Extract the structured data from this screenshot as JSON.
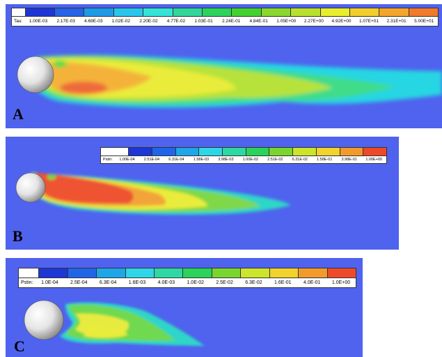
{
  "panels": [
    {
      "letter": "A",
      "legend_title": "Tau:",
      "legend_ticks": [
        "1.00E-03",
        "2.17E-03",
        "4.69E-03",
        "1.02E-02",
        "2.20E-02",
        "4.77E-02",
        "1.03E-01",
        "2.24E-01",
        "4.84E-01",
        "1.05E+00",
        "2.27E+00",
        "4.92E+00",
        "1.07E+01",
        "2.31E+01",
        "5.00E+01"
      ],
      "colors": [
        "#1d36d6",
        "#2563e8",
        "#1d9be8",
        "#28c6ec",
        "#35e4d8",
        "#2fd79a",
        "#2bd35a",
        "#42d230",
        "#8ad72e",
        "#b9e12c",
        "#e8ee2a",
        "#f3cd2c",
        "#f4a52c",
        "#f17a2c",
        "#ee4a2a"
      ]
    },
    {
      "letter": "B",
      "legend_title": "Pstin:",
      "legend_ticks": [
        "1.00E-04",
        "2.51E-04",
        "6.31E-04",
        "1.58E-03",
        "3.98E-03",
        "1.00E-02",
        "2.51E-02",
        "6.31E-02",
        "1.58E-01",
        "3.98E-01",
        "1.00E+00"
      ],
      "colors": [
        "#1d36d6",
        "#2066e8",
        "#1ea6e8",
        "#2ed6e6",
        "#2fd8a2",
        "#2bd35a",
        "#7ad52e",
        "#cde42c",
        "#f2d22c",
        "#f29a2c",
        "#ee4a2a"
      ]
    },
    {
      "letter": "C",
      "legend_title": "Pstin:",
      "legend_ticks": [
        "1.0E-04",
        "2.5E-04",
        "6.3E-04",
        "1.6E-03",
        "4.0E-03",
        "1.0E-02",
        "2.5E-02",
        "6.3E-02",
        "1.6E-01",
        "4.0E-01",
        "1.0E+00"
      ],
      "colors": [
        "#1d36d6",
        "#2066e8",
        "#1ea6e8",
        "#2ed6e6",
        "#2fd8a2",
        "#2bd35a",
        "#7ad52e",
        "#cde42c",
        "#f2d22c",
        "#f29a2c",
        "#ee4a2a"
      ]
    }
  ]
}
